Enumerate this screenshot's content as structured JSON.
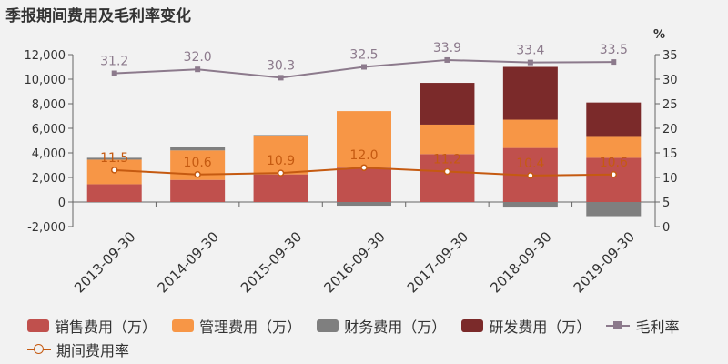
{
  "title": "季报期间费用及毛利率变化",
  "chart_data": {
    "type": "bar",
    "categories": [
      "2013-09-30",
      "2014-09-30",
      "2015-09-30",
      "2016-09-30",
      "2017-09-30",
      "2018-09-30",
      "2019-09-30"
    ],
    "series": [
      {
        "name": "销售费用（万）",
        "kind": "bar",
        "color": "#c0504d",
        "values": [
          1450,
          1800,
          2250,
          2800,
          3900,
          4400,
          3600
        ]
      },
      {
        "name": "管理费用（万）",
        "kind": "bar",
        "color": "#f79646",
        "values": [
          2000,
          2400,
          3150,
          4600,
          2400,
          2300,
          1700
        ]
      },
      {
        "name": "财务费用（万）",
        "kind": "bar",
        "color": "#7f7f7f",
        "values": [
          150,
          300,
          50,
          -300,
          0,
          -450,
          -1150
        ]
      },
      {
        "name": "研发费用（万）",
        "kind": "bar",
        "color": "#7b2a2a",
        "values": [
          0,
          0,
          0,
          0,
          3400,
          4300,
          2800
        ]
      },
      {
        "name": "毛利率",
        "kind": "line",
        "axis": "right",
        "color": "#8c7a8c",
        "values": [
          31.2,
          32.0,
          30.3,
          32.5,
          33.9,
          33.4,
          33.5
        ]
      },
      {
        "name": "期间费用率",
        "kind": "line",
        "axis": "right",
        "color": "#c55a11",
        "values": [
          11.5,
          10.6,
          10.9,
          12.0,
          11.2,
          10.4,
          10.6
        ]
      }
    ],
    "ylim_left": [
      -2000,
      12000
    ],
    "yticks_left": [
      "-2,000",
      "0",
      "2,000",
      "4,000",
      "6,000",
      "8,000",
      "10,000",
      "12,000"
    ],
    "ylim_right": [
      0,
      35
    ],
    "yticks_right": [
      "0",
      "5",
      "10",
      "15",
      "20",
      "25",
      "30",
      "35"
    ],
    "ylabel_right": "%",
    "legend": "bottom"
  }
}
